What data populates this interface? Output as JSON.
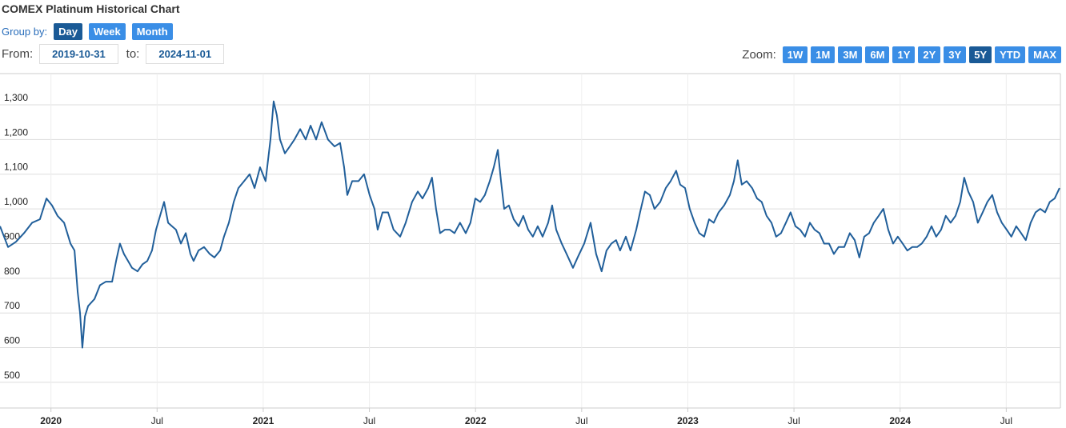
{
  "header": {
    "title": "COMEX Platinum Historical Chart",
    "group_by_label": "Group by:",
    "group_by_buttons": [
      "Day",
      "Week",
      "Month"
    ],
    "group_by_selected": 0,
    "from_label": "From:",
    "from_value": "2019-10-31",
    "to_label": "to:",
    "to_value": "2024-11-01",
    "zoom_label": "Zoom:",
    "zoom_buttons": [
      "1W",
      "1M",
      "3M",
      "6M",
      "1Y",
      "2Y",
      "3Y",
      "5Y",
      "YTD",
      "MAX"
    ],
    "zoom_selected": 7
  },
  "chart_data": {
    "type": "line",
    "color": "#215f9a",
    "grid": true,
    "xlim": [
      2019.76,
      2024.755
    ],
    "ylim": [
      426,
      1390
    ],
    "xticks": [
      2020,
      {
        "value": 2020.5,
        "label": "Jul"
      },
      2021,
      {
        "value": 2021.5,
        "label": "Jul"
      },
      2022,
      {
        "value": 2022.5,
        "label": "Jul"
      },
      2023,
      {
        "value": 2023.5,
        "label": "Jul"
      },
      2024,
      {
        "value": 2024.5,
        "label": "Jul"
      }
    ],
    "yticks": [
      500,
      600,
      700,
      800,
      900,
      {
        "value": 1000,
        "label": "1,000"
      },
      {
        "value": 1100,
        "label": "1,100"
      },
      {
        "value": 1200,
        "label": "1,200"
      },
      {
        "value": 1300,
        "label": "1,300"
      }
    ],
    "x": [
      2019.76,
      2019.798,
      2019.835,
      2019.873,
      2019.911,
      2019.948,
      2019.979,
      2020.005,
      2020.031,
      2020.062,
      2020.092,
      2020.111,
      2020.126,
      2020.137,
      2020.148,
      2020.16,
      2020.175,
      2020.205,
      2020.231,
      2020.258,
      2020.288,
      2020.307,
      2020.325,
      2020.344,
      2020.363,
      2020.382,
      2020.408,
      2020.431,
      2020.454,
      2020.476,
      2020.495,
      2020.514,
      2020.533,
      2020.552,
      2020.57,
      2020.589,
      2020.612,
      2020.635,
      2020.657,
      2020.672,
      2020.695,
      2020.721,
      2020.748,
      2020.77,
      2020.797,
      2020.815,
      2020.838,
      2020.861,
      2020.883,
      2020.91,
      2020.936,
      2020.959,
      2020.985,
      2021.011,
      2021.034,
      2021.049,
      2021.064,
      2021.079,
      2021.102,
      2021.125,
      2021.147,
      2021.174,
      2021.2,
      2021.223,
      2021.249,
      2021.275,
      2021.305,
      2021.336,
      2021.362,
      2021.381,
      2021.396,
      2021.419,
      2021.449,
      2021.475,
      2021.501,
      2021.524,
      2021.539,
      2021.562,
      2021.588,
      2021.614,
      2021.645,
      2021.671,
      2021.701,
      2021.728,
      2021.75,
      2021.777,
      2021.795,
      2021.814,
      2021.833,
      2021.856,
      2021.878,
      2021.901,
      2021.927,
      2021.954,
      2021.976,
      2021.999,
      2022.022,
      2022.044,
      2022.067,
      2022.086,
      2022.105,
      2022.12,
      2022.135,
      2022.157,
      2022.18,
      2022.203,
      2022.225,
      2022.248,
      2022.27,
      2022.293,
      2022.316,
      2022.342,
      2022.361,
      2022.38,
      2022.406,
      2022.429,
      2022.459,
      2022.481,
      2022.512,
      2022.542,
      2022.568,
      2022.594,
      2022.617,
      2022.64,
      2022.662,
      2022.681,
      2022.708,
      2022.73,
      2022.757,
      2022.775,
      2022.798,
      2022.821,
      2022.843,
      2022.87,
      2022.896,
      2022.919,
      2022.945,
      2022.964,
      2022.987,
      2023.009,
      2023.032,
      2023.054,
      2023.077,
      2023.1,
      2023.122,
      2023.145,
      2023.171,
      2023.198,
      2023.217,
      2023.235,
      2023.254,
      2023.277,
      2023.303,
      2023.326,
      2023.348,
      2023.371,
      2023.394,
      2023.416,
      2023.439,
      2023.462,
      2023.484,
      2023.507,
      2023.529,
      2023.552,
      2023.575,
      2023.597,
      2023.62,
      2023.642,
      2023.665,
      2023.688,
      2023.71,
      2023.737,
      2023.763,
      2023.786,
      2023.808,
      2023.831,
      2023.854,
      2023.876,
      2023.899,
      2023.921,
      2023.944,
      2023.967,
      2023.989,
      2024.012,
      2024.034,
      2024.057,
      2024.08,
      2024.102,
      2024.125,
      2024.148,
      2024.17,
      2024.193,
      2024.215,
      2024.238,
      2024.261,
      2024.283,
      2024.302,
      2024.321,
      2024.344,
      2024.366,
      2024.389,
      2024.411,
      2024.434,
      2024.457,
      2024.479,
      2024.502,
      2024.524,
      2024.547,
      2024.57,
      2024.592,
      2024.615,
      2024.638,
      2024.66,
      2024.683,
      2024.705,
      2024.728,
      2024.751
    ],
    "values": [
      950,
      890,
      905,
      930,
      960,
      970,
      1030,
      1010,
      980,
      960,
      900,
      880,
      760,
      700,
      600,
      690,
      720,
      740,
      780,
      790,
      790,
      850,
      900,
      870,
      850,
      830,
      820,
      840,
      850,
      880,
      940,
      980,
      1020,
      960,
      950,
      940,
      900,
      930,
      870,
      850,
      880,
      890,
      870,
      860,
      880,
      920,
      960,
      1020,
      1060,
      1080,
      1100,
      1060,
      1120,
      1080,
      1200,
      1310,
      1270,
      1200,
      1160,
      1180,
      1200,
      1230,
      1200,
      1240,
      1200,
      1250,
      1200,
      1180,
      1190,
      1120,
      1040,
      1080,
      1080,
      1100,
      1040,
      1000,
      940,
      990,
      990,
      940,
      920,
      960,
      1020,
      1050,
      1030,
      1060,
      1090,
      1000,
      930,
      940,
      940,
      930,
      960,
      930,
      960,
      1030,
      1020,
      1040,
      1080,
      1120,
      1170,
      1080,
      1000,
      1010,
      970,
      950,
      980,
      940,
      920,
      950,
      920,
      960,
      1010,
      940,
      900,
      870,
      830,
      860,
      900,
      960,
      870,
      820,
      880,
      900,
      910,
      880,
      920,
      880,
      940,
      990,
      1050,
      1040,
      1000,
      1020,
      1060,
      1080,
      1110,
      1070,
      1060,
      1000,
      960,
      930,
      920,
      970,
      960,
      990,
      1010,
      1040,
      1080,
      1140,
      1070,
      1080,
      1060,
      1030,
      1020,
      980,
      960,
      920,
      930,
      960,
      990,
      950,
      940,
      920,
      960,
      940,
      930,
      900,
      900,
      870,
      890,
      890,
      930,
      910,
      860,
      920,
      930,
      960,
      980,
      1000,
      940,
      900,
      920,
      900,
      880,
      890,
      890,
      900,
      920,
      950,
      920,
      940,
      980,
      960,
      980,
      1020,
      1090,
      1050,
      1020,
      960,
      990,
      1020,
      1040,
      990,
      960,
      940,
      920,
      950,
      930,
      910,
      960,
      990,
      1000,
      990,
      1020,
      1030,
      1060
    ]
  }
}
